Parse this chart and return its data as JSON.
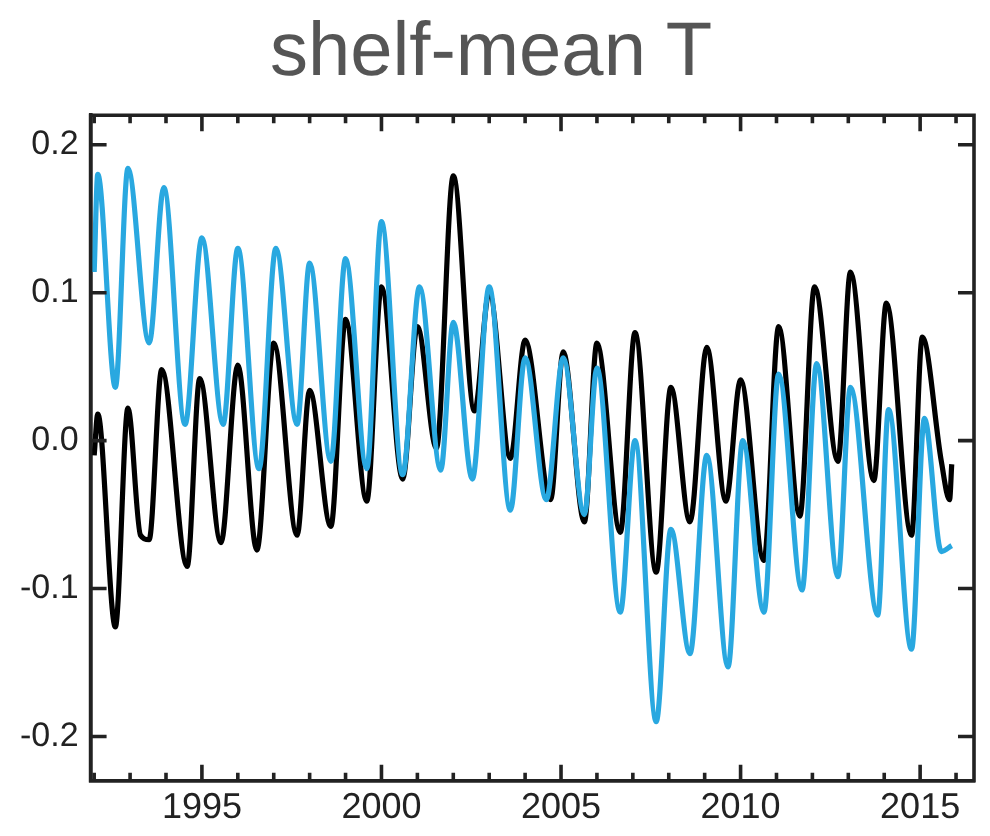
{
  "chart_data": {
    "type": "line",
    "title": "shelf-mean T",
    "marker": "none",
    "grid": false,
    "legend": false,
    "xlim": [
      1991.9,
      2016.5
    ],
    "ylim": [
      -0.23,
      0.22
    ],
    "xticks": [
      {
        "value": 1992,
        "label": null
      },
      {
        "value": 1993,
        "label": null
      },
      {
        "value": 1994,
        "label": null
      },
      1995,
      {
        "value": 1996,
        "label": null
      },
      {
        "value": 1997,
        "label": null
      },
      {
        "value": 1998,
        "label": null
      },
      {
        "value": 1999,
        "label": null
      },
      2000,
      {
        "value": 2001,
        "label": null
      },
      {
        "value": 2002,
        "label": null
      },
      {
        "value": 2003,
        "label": null
      },
      {
        "value": 2004,
        "label": null
      },
      2005,
      {
        "value": 2006,
        "label": null
      },
      {
        "value": 2007,
        "label": null
      },
      {
        "value": 2008,
        "label": null
      },
      {
        "value": 2009,
        "label": null
      },
      2010,
      {
        "value": 2011,
        "label": null
      },
      {
        "value": 2012,
        "label": null
      },
      {
        "value": 2013,
        "label": null
      },
      {
        "value": 2014,
        "label": null
      },
      2015,
      {
        "value": 2016,
        "label": null
      }
    ],
    "yticks": [
      {
        "value": -0.2,
        "label": "-0.2"
      },
      {
        "value": -0.1,
        "label": "-0.1"
      },
      {
        "value": 0,
        "label": "0.0"
      },
      {
        "value": 0.1,
        "label": "0.1"
      },
      {
        "value": 0.2,
        "label": "0.2"
      }
    ],
    "series": [
      {
        "color": "#29a8e0",
        "x": [
          1992.0,
          1992.1,
          1992.59,
          1992.94,
          1993.53,
          1993.94,
          1994.53,
          1995.0,
          1995.59,
          1996.0,
          1996.59,
          1997.06,
          1997.65,
          1998.0,
          1998.59,
          1999.0,
          1999.59,
          2000.0,
          2000.59,
          2001.06,
          2001.65,
          2002.0,
          2002.53,
          2003.0,
          2003.59,
          2004.0,
          2004.59,
          2005.06,
          2005.65,
          2006.0,
          2006.65,
          2007.06,
          2007.65,
          2008.06,
          2008.59,
          2009.06,
          2009.65,
          2010.06,
          2010.65,
          2011.06,
          2011.71,
          2012.12,
          2012.71,
          2013.06,
          2013.82,
          2014.12,
          2014.76,
          2015.12,
          2015.59,
          2015.88
        ],
        "values": [
          0.114,
          0.18,
          0.036,
          0.184,
          0.066,
          0.171,
          0.011,
          0.137,
          0.011,
          0.13,
          -0.019,
          0.13,
          0.011,
          0.12,
          -0.014,
          0.123,
          -0.019,
          0.148,
          -0.023,
          0.104,
          -0.02,
          0.08,
          -0.026,
          0.104,
          -0.047,
          0.056,
          -0.04,
          0.056,
          -0.05,
          0.049,
          -0.116,
          0.0,
          -0.19,
          -0.06,
          -0.144,
          -0.01,
          -0.153,
          0.0,
          -0.116,
          0.045,
          -0.101,
          0.052,
          -0.092,
          0.036,
          -0.118,
          0.021,
          -0.141,
          0.015,
          -0.075,
          -0.071
        ]
      },
      {
        "color": "#000000",
        "x": [
          1992.0,
          1992.1,
          1992.59,
          1992.94,
          1993.29,
          1993.53,
          1993.88,
          1994.59,
          1994.94,
          1995.53,
          1996.0,
          1996.53,
          1997.0,
          1997.65,
          1998.0,
          1998.59,
          1999.0,
          1999.59,
          2000.0,
          2000.59,
          2001.0,
          2001.53,
          2002.0,
          2002.59,
          2003.0,
          2003.59,
          2004.0,
          2004.71,
          2005.06,
          2005.65,
          2006.0,
          2006.65,
          2007.06,
          2007.65,
          2008.06,
          2008.59,
          2009.06,
          2009.59,
          2010.0,
          2010.65,
          2011.06,
          2011.65,
          2012.06,
          2012.71,
          2013.06,
          2013.71,
          2014.06,
          2014.76,
          2015.06,
          2015.59,
          2015.82,
          2015.88
        ],
        "values": [
          -0.01,
          0.018,
          -0.126,
          0.022,
          -0.064,
          -0.067,
          0.048,
          -0.085,
          0.042,
          -0.069,
          0.051,
          -0.074,
          0.066,
          -0.064,
          0.034,
          -0.058,
          0.082,
          -0.041,
          0.104,
          -0.026,
          0.077,
          -0.005,
          0.179,
          0.02,
          0.1,
          -0.012,
          0.068,
          -0.04,
          0.06,
          -0.055,
          0.066,
          -0.062,
          0.073,
          -0.089,
          0.036,
          -0.055,
          0.063,
          -0.041,
          0.041,
          -0.081,
          0.077,
          -0.051,
          0.104,
          -0.014,
          0.114,
          -0.027,
          0.093,
          -0.064,
          0.07,
          -0.014,
          -0.04,
          -0.016
        ]
      }
    ]
  }
}
